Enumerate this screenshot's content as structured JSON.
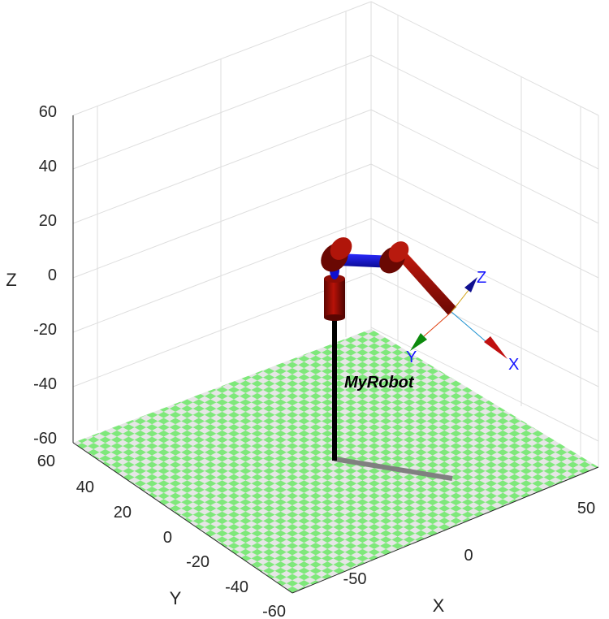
{
  "robot_name": "MyRobot",
  "axes": {
    "x_label": "X",
    "y_label": "Y",
    "z_label": "Z",
    "x_ticks": [
      "-50",
      "0",
      "50"
    ],
    "y_ticks": [
      "60",
      "40",
      "20",
      "0",
      "-20",
      "-40",
      "-60"
    ],
    "z_ticks": [
      "60",
      "40",
      "20",
      "0",
      "-20",
      "-40",
      "-60"
    ],
    "x_lim": [
      -60,
      60
    ],
    "y_lim": [
      -60,
      60
    ],
    "z_lim": [
      -60,
      60
    ],
    "grid": true
  },
  "frame_labels": {
    "x": "X",
    "y": "Y",
    "z": "Z"
  },
  "colors": {
    "floor_light": "#e6e6e6",
    "floor_green": "#7ee87a",
    "link_red": "#a50d05",
    "joint_blue": "#1010d0",
    "pedestal": "#000000",
    "shadow": "#808080",
    "frame_x": "#d01010",
    "frame_y": "#0c8a0c",
    "frame_z": "#101090"
  }
}
